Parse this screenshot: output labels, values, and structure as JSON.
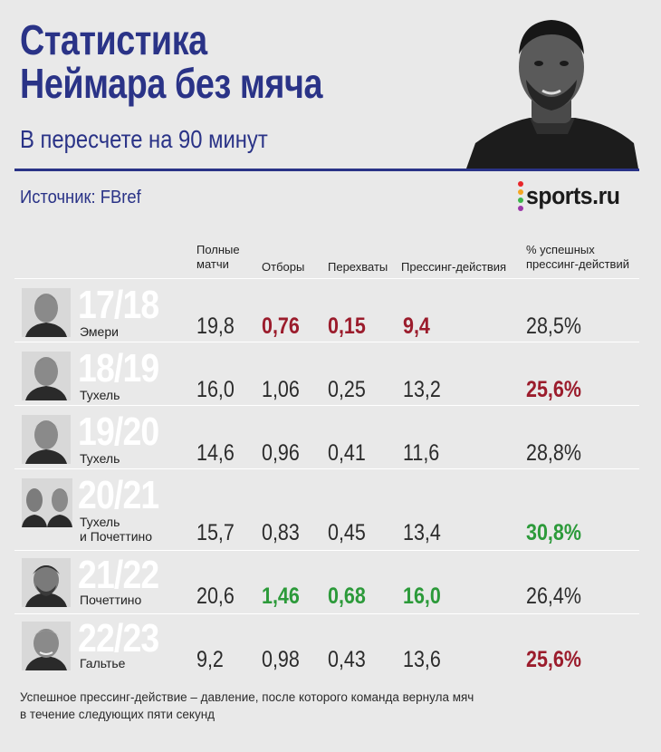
{
  "header": {
    "title_line1": "Статистика",
    "title_line2": "Неймара без мяча",
    "subtitle": "В пересчете на 90 минут",
    "source": "Источник: FBref",
    "logo_text": "sports.ru"
  },
  "columns": {
    "matches": "Полные матчи",
    "tackles": "Отборы",
    "interceptions": "Перехваты",
    "pressures": "Прессинг-действия",
    "success": "% успешных прессинг-действий"
  },
  "rows": [
    {
      "season": "17/18",
      "coach": "Эмери",
      "coach2": "",
      "matches": "19,8",
      "tackles": "0,76",
      "interceptions": "0,15",
      "pressures": "9,4",
      "success": "28,5%"
    },
    {
      "season": "18/19",
      "coach": "Тухель",
      "coach2": "",
      "matches": "16,0",
      "tackles": "1,06",
      "interceptions": "0,25",
      "pressures": "13,2",
      "success": "25,6%"
    },
    {
      "season": "19/20",
      "coach": "Тухель",
      "coach2": "",
      "matches": "14,6",
      "tackles": "0,96",
      "interceptions": "0,41",
      "pressures": "11,6",
      "success": "28,8%"
    },
    {
      "season": "20/21",
      "coach": "Тухель",
      "coach2": "и Почеттино",
      "matches": "15,7",
      "tackles": "0,83",
      "interceptions": "0,45",
      "pressures": "13,4",
      "success": "30,8%"
    },
    {
      "season": "21/22",
      "coach": "Почеттино",
      "coach2": "",
      "matches": "20,6",
      "tackles": "1,46",
      "interceptions": "0,68",
      "pressures": "16,0",
      "success": "26,4%"
    },
    {
      "season": "22/23",
      "coach": "Гальтье",
      "coach2": "",
      "matches": "9,2",
      "tackles": "0,98",
      "interceptions": "0,43",
      "pressures": "13,6",
      "success": "25,6%"
    }
  ],
  "highlights": {
    "red_cells": [
      "0.tackles",
      "0.interceptions",
      "0.pressures",
      "1.success",
      "5.success"
    ],
    "green_cells": [
      "3.success",
      "4.tackles",
      "4.interceptions",
      "4.pressures"
    ],
    "red_color": "#9b1c2c",
    "green_color": "#2c9a3a",
    "title_color": "#2a3387"
  },
  "footnote": {
    "line1": "Успешное прессинг-действие – давление, после которого команда вернула мяч",
    "line2": "в течение следующих пяти секунд"
  }
}
